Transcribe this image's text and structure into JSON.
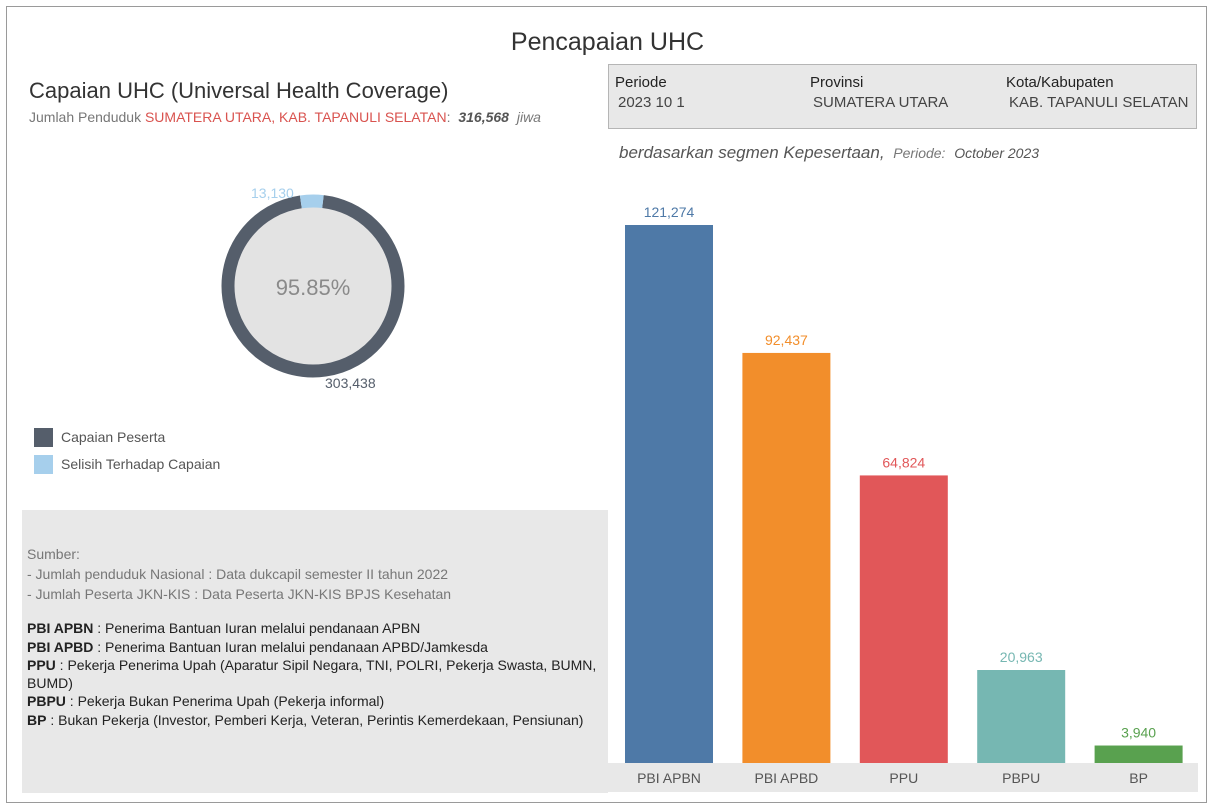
{
  "page_title": "Pencapaian UHC",
  "left": {
    "title": "Capaian UHC (Universal Health Coverage)",
    "subtitle_prefix": "Jumlah Penduduk",
    "region": "SUMATERA UTARA, KAB. TAPANULI SELATAN",
    "colon": ":",
    "population": "316,568",
    "population_unit": "jiwa"
  },
  "info_box": {
    "periode_label": "Periode",
    "periode_value": "2023 10 1",
    "provinsi_label": "Provinsi",
    "provinsi_value": "SUMATERA UTARA",
    "kota_label": "Kota/Kabupaten",
    "kota_value": "KAB. TAPANULI SELATAN"
  },
  "segment_title": {
    "text": "berdasarkan segmen Kepesertaan,",
    "periode_label": "Periode:",
    "periode_value": "October 2023"
  },
  "legend": [
    {
      "label": "Capaian Peserta",
      "color": "#555e6b"
    },
    {
      "label": "Selisih Terhadap Capaian",
      "color": "#a6cfec"
    }
  ],
  "notes": {
    "source_lines": [
      "Sumber:",
      "- Jumlah penduduk Nasional : Data dukcapil semester II tahun 2022",
      "- Jumlah Peserta JKN-KIS : Data Peserta JKN-KIS BPJS Kesehatan"
    ],
    "definitions": [
      {
        "term": "PBI APBN",
        "desc": " : Penerima Bantuan Iuran melalui pendanaan APBN"
      },
      {
        "term": "PBI APBD",
        "desc": " : Penerima Bantuan Iuran melalui pendanaan APBD/Jamkesda"
      },
      {
        "term": "PPU",
        "desc": " : Pekerja Penerima Upah (Aparatur Sipil Negara, TNI, POLRI, Pekerja Swasta, BUMN, BUMD)"
      },
      {
        "term": "PBPU",
        "desc": " : Pekerja Bukan Penerima Upah (Pekerja informal)"
      },
      {
        "term": "BP",
        "desc": " : Bukan Pekerja (Investor, Pemberi Kerja, Veteran, Perintis Kemerdekaan, Pensiunan)"
      }
    ]
  },
  "chart_data": [
    {
      "type": "pie",
      "style": "donut",
      "center_label": "95.85%",
      "slices": [
        {
          "name": "Capaian Peserta",
          "value": 303438,
          "label": "303,438",
          "color": "#555e6b"
        },
        {
          "name": "Selisih Terhadap Capaian",
          "value": 13130,
          "label": "13,130",
          "color": "#a6cfec"
        }
      ]
    },
    {
      "type": "bar",
      "title": "",
      "categories": [
        "PBI APBN",
        "PBI APBD",
        "PPU",
        "PBPU",
        "BP"
      ],
      "values": [
        121274,
        92437,
        64824,
        20963,
        3940
      ],
      "value_labels": [
        "121,274",
        "92,437",
        "64,824",
        "20,963",
        "3,940"
      ],
      "colors": [
        "#4e79a7",
        "#f28e2b",
        "#e15759",
        "#76b7b2",
        "#59a14f"
      ],
      "ylim": [
        0,
        130000
      ],
      "grid": false,
      "xlabel": "",
      "ylabel": ""
    }
  ]
}
